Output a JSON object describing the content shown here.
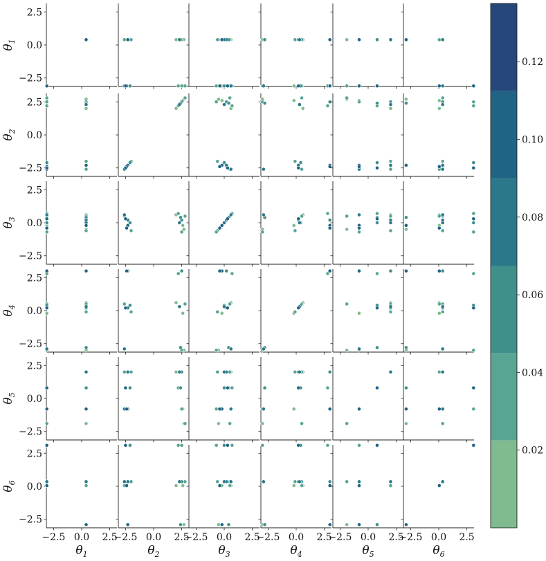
{
  "chart_data": {
    "type": "scatter",
    "variables": [
      "θ1",
      "θ2",
      "θ3",
      "θ4",
      "θ5",
      "θ6"
    ],
    "axis_labels": [
      {
        "base": "θ",
        "sub": "1"
      },
      {
        "base": "θ",
        "sub": "2"
      },
      {
        "base": "θ",
        "sub": "3"
      },
      {
        "base": "θ",
        "sub": "4"
      },
      {
        "base": "θ",
        "sub": "5"
      },
      {
        "base": "θ",
        "sub": "6"
      }
    ],
    "x_ticks": [
      "−2.5",
      "0.0",
      "2.5"
    ],
    "y_ticks": [
      "2.5",
      "0.0",
      "−2.5"
    ],
    "x_tick_values": [
      -2.5,
      0.0,
      2.5
    ],
    "y_tick_values": [
      2.5,
      0.0,
      -2.5
    ],
    "xlim": [
      -3.1416,
      3.1416
    ],
    "ylim": [
      -3.1416,
      3.1416
    ],
    "colorbar": {
      "ticks": [
        "0.02",
        "0.04",
        "0.06",
        "0.08",
        "0.10",
        "0.12"
      ],
      "tick_values": [
        0.02,
        0.04,
        0.06,
        0.08,
        0.1,
        0.12
      ],
      "range": [
        0.0,
        0.135
      ],
      "colors": [
        "#7fbb8e",
        "#57a592",
        "#3f8f8b",
        "#2a7889",
        "#1f6385",
        "#26477b"
      ],
      "position": "right"
    },
    "grid": false,
    "point_sets": [
      {
        "theta": [
          0.4,
          2.5,
          0.2,
          3.0,
          2.0,
          0.35
        ],
        "weight": 0.05
      },
      {
        "theta": [
          0.4,
          2.3,
          0.0,
          0.3,
          2.0,
          0.35
        ],
        "weight": 0.08
      },
      {
        "theta": [
          0.4,
          2.0,
          0.6,
          0.6,
          2.0,
          0.05
        ],
        "weight": 0.02
      },
      {
        "theta": [
          0.4,
          -2.0,
          -0.6,
          -0.1,
          2.0,
          0.35
        ],
        "weight": 0.03
      },
      {
        "theta": [
          0.4,
          -2.3,
          0.2,
          0.2,
          2.0,
          0.35
        ],
        "weight": 0.07
      },
      {
        "theta": [
          0.4,
          -2.6,
          0.5,
          0.5,
          2.0,
          0.05
        ],
        "weight": 0.04
      },
      {
        "theta": [
          0.4,
          2.7,
          -0.5,
          -3.0,
          -1.9,
          -2.9
        ],
        "weight": 0.02
      },
      {
        "theta": [
          0.4,
          -2.3,
          -0.2,
          3.0,
          -0.8,
          -2.9
        ],
        "weight": 0.09
      },
      {
        "theta": [
          0.4,
          2.4,
          0.4,
          -2.8,
          0.8,
          -2.9
        ],
        "weight": 0.05
      },
      {
        "theta": [
          -3.1,
          -2.5,
          0.3,
          0.2,
          0.8,
          3.1
        ],
        "weight": 0.11
      },
      {
        "theta": [
          -3.1,
          2.5,
          -0.7,
          -3.0,
          -0.8,
          3.1
        ],
        "weight": 0.04
      },
      {
        "theta": [
          -3.1,
          -2.1,
          0.0,
          0.4,
          0.8,
          3.1
        ],
        "weight": 0.06
      },
      {
        "theta": [
          -3.1,
          2.2,
          0.7,
          2.8,
          0.8,
          3.1
        ],
        "weight": 0.03
      },
      {
        "theta": [
          -3.1,
          -2.4,
          -0.4,
          3.0,
          -0.8,
          0.05
        ],
        "weight": 0.1
      },
      {
        "theta": [
          -3.1,
          2.6,
          -0.2,
          -0.2,
          -0.8,
          0.05
        ],
        "weight": 0.02
      },
      {
        "theta": [
          -3.1,
          -2.6,
          0.6,
          -2.9,
          -0.8,
          0.35
        ],
        "weight": 0.08
      },
      {
        "theta": [
          -3.1,
          2.8,
          0.5,
          0.5,
          -1.9,
          0.35
        ],
        "weight": 0.04
      }
    ]
  }
}
